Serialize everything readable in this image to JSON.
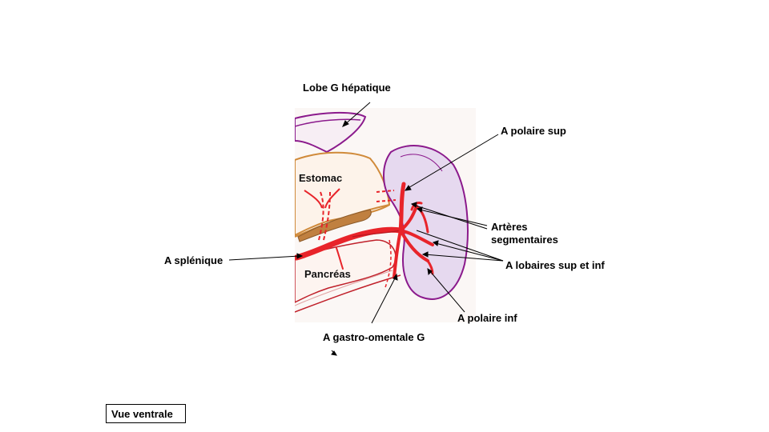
{
  "labels": {
    "liver": "Lobe G hépatique",
    "polar_sup": "A polaire sup",
    "stomach": "Estomac",
    "segmental_line1": "Artères",
    "segmental_line2": "segmentaires",
    "splenic": "A splénique",
    "lobar": "A lobaires sup et inf",
    "pancreas": "Pancréas",
    "polar_inf": "A polaire inf",
    "gastro_omental": "A gastro-omentale G"
  },
  "view_caption": "Vue ventrale",
  "colors": {
    "artery": "#e8242a",
    "spleen_outline": "#8b1a8c",
    "spleen_fill": "#d9c8ea",
    "stomach_outline": "#d08a3a",
    "pancreas_outline": "#c0202a",
    "liver_outline": "#8b1a8c"
  }
}
